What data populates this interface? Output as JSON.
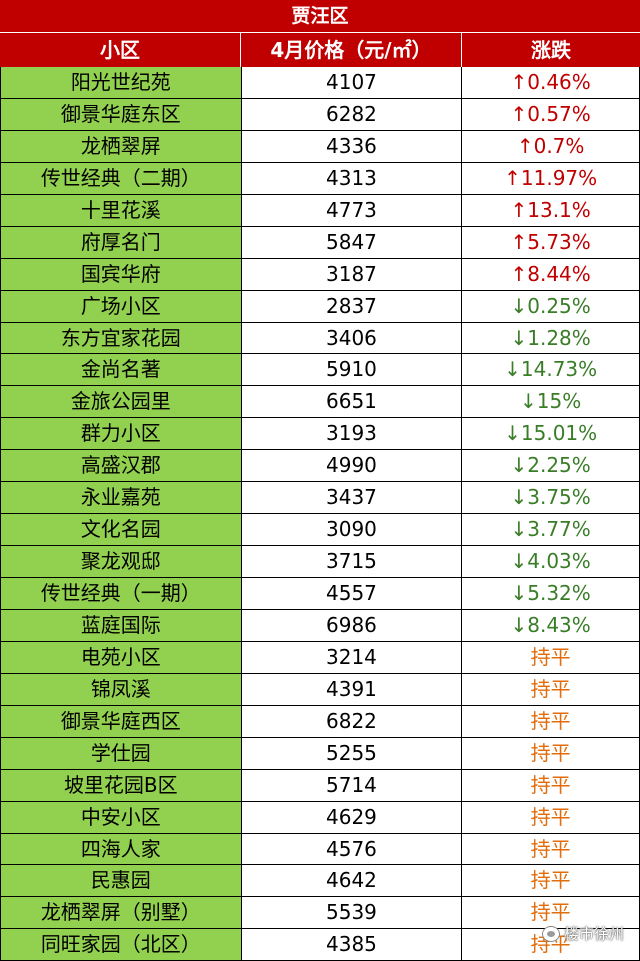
{
  "title": "贾汪区",
  "headers": {
    "name": "小区",
    "price": "4月价格（元/㎡）",
    "change": "涨跌"
  },
  "colors": {
    "header_bg": "#c00000",
    "name_bg": "#92d050",
    "up": "#c00000",
    "down": "#3a7d28",
    "flat": "#e26b0a"
  },
  "rows": [
    {
      "name": "阳光世纪苑",
      "price": "4107",
      "change": "↑0.46%",
      "trend": "up"
    },
    {
      "name": "御景华庭东区",
      "price": "6282",
      "change": "↑0.57%",
      "trend": "up"
    },
    {
      "name": "龙栖翠屏",
      "price": "4336",
      "change": "↑0.7%",
      "trend": "up"
    },
    {
      "name": "传世经典（二期）",
      "price": "4313",
      "change": "↑11.97%",
      "trend": "up"
    },
    {
      "name": "十里花溪",
      "price": "4773",
      "change": "↑13.1%",
      "trend": "up"
    },
    {
      "name": "府厚名门",
      "price": "5847",
      "change": "↑5.73%",
      "trend": "up"
    },
    {
      "name": "国宾华府",
      "price": "3187",
      "change": "↑8.44%",
      "trend": "up"
    },
    {
      "name": "广场小区",
      "price": "2837",
      "change": "↓0.25%",
      "trend": "down"
    },
    {
      "name": "东方宜家花园",
      "price": "3406",
      "change": "↓1.28%",
      "trend": "down"
    },
    {
      "name": "金尚名著",
      "price": "5910",
      "change": "↓14.73%",
      "trend": "down"
    },
    {
      "name": "金旅公园里",
      "price": "6651",
      "change": "↓15%",
      "trend": "down"
    },
    {
      "name": "群力小区",
      "price": "3193",
      "change": "↓15.01%",
      "trend": "down"
    },
    {
      "name": "高盛汉郡",
      "price": "4990",
      "change": "↓2.25%",
      "trend": "down"
    },
    {
      "name": "永业嘉苑",
      "price": "3437",
      "change": "↓3.75%",
      "trend": "down"
    },
    {
      "name": "文化名园",
      "price": "3090",
      "change": "↓3.77%",
      "trend": "down"
    },
    {
      "name": "聚龙观邸",
      "price": "3715",
      "change": "↓4.03%",
      "trend": "down"
    },
    {
      "name": "传世经典（一期）",
      "price": "4557",
      "change": "↓5.32%",
      "trend": "down"
    },
    {
      "name": "蓝庭国际",
      "price": "6986",
      "change": "↓8.43%",
      "trend": "down"
    },
    {
      "name": "电苑小区",
      "price": "3214",
      "change": "持平",
      "trend": "flat"
    },
    {
      "name": "锦凤溪",
      "price": "4391",
      "change": "持平",
      "trend": "flat"
    },
    {
      "name": "御景华庭西区",
      "price": "6822",
      "change": "持平",
      "trend": "flat"
    },
    {
      "name": "学仕园",
      "price": "5255",
      "change": "持平",
      "trend": "flat"
    },
    {
      "name": "坡里花园B区",
      "price": "5714",
      "change": "持平",
      "trend": "flat"
    },
    {
      "name": "中安小区",
      "price": "4629",
      "change": "持平",
      "trend": "flat"
    },
    {
      "name": "四海人家",
      "price": "4576",
      "change": "持平",
      "trend": "flat"
    },
    {
      "name": "民惠园",
      "price": "4642",
      "change": "持平",
      "trend": "flat"
    },
    {
      "name": "龙栖翠屏（别墅）",
      "price": "5539",
      "change": "持平",
      "trend": "flat"
    },
    {
      "name": "同旺家园（北区）",
      "price": "4385",
      "change": "持平",
      "trend": "flat"
    }
  ],
  "watermark": {
    "text": "楼市徐州",
    "icon": "wechat-icon"
  }
}
